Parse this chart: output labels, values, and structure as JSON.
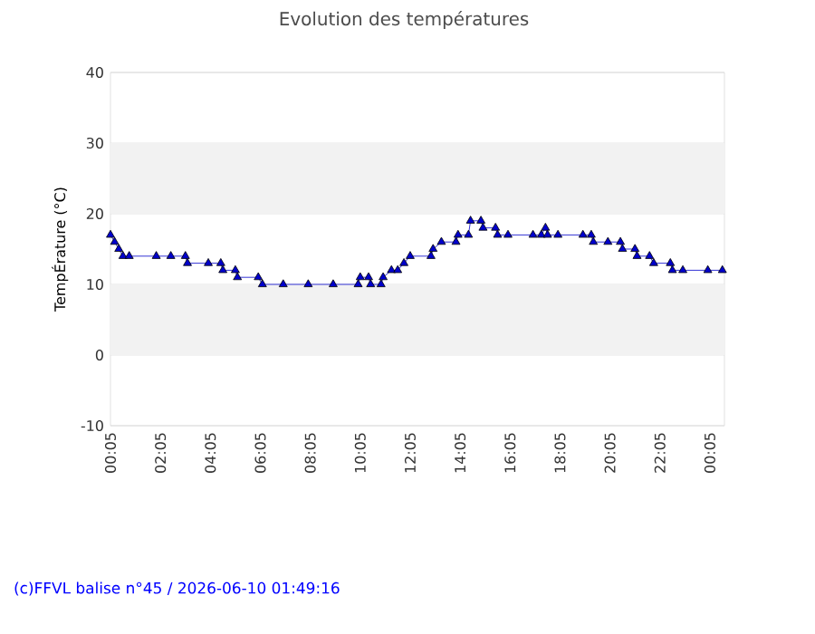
{
  "chart_data": {
    "type": "line",
    "title": "Evolution des températures",
    "ylabel": "TempÉrature (°C)",
    "annotations": [
      "(c)FFVL balise n°45 / 2026-06-10 01:49:16"
    ],
    "xlim": [
      "2026-06-09T00:05",
      "2026-06-10T00:40"
    ],
    "ylim": [
      -10,
      40
    ],
    "yticks": [
      -10,
      0,
      10,
      20,
      30,
      40
    ],
    "xticks": [
      {
        "value": "2026-06-09T00:05",
        "label": "00:05"
      },
      {
        "value": "2026-06-09T02:05",
        "label": "02:05"
      },
      {
        "value": "2026-06-09T04:05",
        "label": "04:05"
      },
      {
        "value": "2026-06-09T06:05",
        "label": "06:05"
      },
      {
        "value": "2026-06-09T08:05",
        "label": "08:05"
      },
      {
        "value": "2026-06-09T10:05",
        "label": "10:05"
      },
      {
        "value": "2026-06-09T12:05",
        "label": "12:05"
      },
      {
        "value": "2026-06-09T14:05",
        "label": "14:05"
      },
      {
        "value": "2026-06-09T16:05",
        "label": "16:05"
      },
      {
        "value": "2026-06-09T18:05",
        "label": "18:05"
      },
      {
        "value": "2026-06-09T20:05",
        "label": "20:05"
      },
      {
        "value": "2026-06-09T22:05",
        "label": "22:05"
      },
      {
        "value": "2026-06-10T00:05",
        "label": "00:05"
      }
    ],
    "grid": "y",
    "marker": "triangle",
    "line_style": "solid",
    "bands": [
      {
        "axis": "y",
        "from": 20,
        "to": 30,
        "color": "#f2f2f2"
      },
      {
        "axis": "y",
        "from": 0,
        "to": 10,
        "color": "#f2f2f2"
      }
    ],
    "x": [
      "2026-06-09T00:05",
      "2026-06-09T00:15",
      "2026-06-09T00:25",
      "2026-06-09T00:35",
      "2026-06-09T00:50",
      "2026-06-09T01:55",
      "2026-06-09T02:30",
      "2026-06-09T03:05",
      "2026-06-09T03:10",
      "2026-06-09T04:00",
      "2026-06-09T04:30",
      "2026-06-09T04:35",
      "2026-06-09T05:05",
      "2026-06-09T05:10",
      "2026-06-09T06:00",
      "2026-06-09T06:10",
      "2026-06-09T07:00",
      "2026-06-09T08:00",
      "2026-06-09T09:00",
      "2026-06-09T10:00",
      "2026-06-09T10:05",
      "2026-06-09T10:25",
      "2026-06-09T10:30",
      "2026-06-09T10:55",
      "2026-06-09T11:00",
      "2026-06-09T11:20",
      "2026-06-09T11:35",
      "2026-06-09T11:50",
      "2026-06-09T12:05",
      "2026-06-09T12:55",
      "2026-06-09T13:00",
      "2026-06-09T13:20",
      "2026-06-09T13:55",
      "2026-06-09T14:00",
      "2026-06-09T14:25",
      "2026-06-09T14:30",
      "2026-06-09T14:55",
      "2026-06-09T15:00",
      "2026-06-09T15:30",
      "2026-06-09T15:35",
      "2026-06-09T16:00",
      "2026-06-09T17:00",
      "2026-06-09T17:20",
      "2026-06-09T17:30",
      "2026-06-09T17:35",
      "2026-06-09T18:00",
      "2026-06-09T19:00",
      "2026-06-09T19:20",
      "2026-06-09T19:25",
      "2026-06-09T20:00",
      "2026-06-09T20:30",
      "2026-06-09T20:35",
      "2026-06-09T21:05",
      "2026-06-09T21:10",
      "2026-06-09T21:40",
      "2026-06-09T21:50",
      "2026-06-09T22:30",
      "2026-06-09T22:35",
      "2026-06-09T23:00",
      "2026-06-10T00:00",
      "2026-06-10T00:35"
    ],
    "series": [
      {
        "color": "#0000cc",
        "values": [
          17,
          16,
          15,
          14,
          14,
          14,
          14,
          14,
          13,
          13,
          13,
          12,
          12,
          11,
          11,
          10,
          10,
          10,
          10,
          10,
          11,
          11,
          10,
          10,
          11,
          12,
          12,
          13,
          14,
          14,
          15,
          16,
          16,
          17,
          17,
          19,
          19,
          18,
          18,
          17,
          17,
          17,
          17,
          18,
          17,
          17,
          17,
          17,
          16,
          16,
          16,
          15,
          15,
          14,
          14,
          13,
          13,
          12,
          12,
          12,
          12
        ]
      }
    ]
  }
}
